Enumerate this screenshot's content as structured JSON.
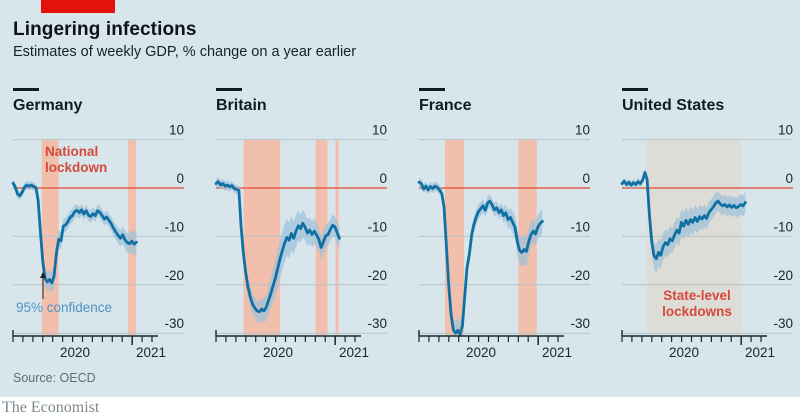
{
  "header": {
    "title": "Lingering infections",
    "subtitle": "Estimates of weekly GDP, % change on a year earlier"
  },
  "footer": {
    "source": "Source: OECD",
    "brand": "The Economist"
  },
  "colors": {
    "card_bg": "#d8e6ec",
    "red_tab": "#e3120b",
    "band_pink": "#f2bfac",
    "band_gray": "#dedcd6",
    "gridline": "#b4c3ca",
    "zero_line": "#e4604e",
    "gdp_line": "#1170a3",
    "confidence_band": "#9dc2d9",
    "annotation_red": "#d6493a",
    "annotation_blue": "#4e93c4",
    "axis": "#13282e"
  },
  "chart_data": {
    "type": "line",
    "title": "Lingering infections",
    "ylabel": "% change on a year earlier",
    "ylim": [
      -33,
      10
    ],
    "yticks": [
      10,
      0,
      -10,
      -20,
      -30
    ],
    "x_unit": "weeks since 2020-01-01",
    "x_axis": {
      "start": "2020-01",
      "end": "2021-03",
      "year_labels": [
        "2020",
        "2021"
      ],
      "tick_interval": "monthly"
    },
    "legend": {
      "confidence_label": "95% confidence"
    },
    "panels": [
      {
        "id": "germany",
        "title": "Germany",
        "lockdowns": [
          {
            "from": 12.6,
            "to": 19.9,
            "style": "pink"
          },
          {
            "from": 50.4,
            "to": 53.8,
            "style": "pink"
          }
        ],
        "gdp": [
          1.0,
          0.2,
          -1.3,
          -1.6,
          -0.9,
          0.1,
          0.6,
          0.4,
          0.6,
          0.3,
          0.1,
          -2.5,
          -9.0,
          -15.0,
          -18.6,
          -19.4,
          -18.9,
          -19.6,
          -18.2,
          -13.5,
          -10.6,
          -10.9,
          -7.9,
          -7.6,
          -7.0,
          -6.1,
          -5.7,
          -4.9,
          -4.6,
          -5.1,
          -4.5,
          -5.4,
          -4.7,
          -5.6,
          -5.9,
          -5.3,
          -5.7,
          -4.7,
          -5.0,
          -5.7,
          -6.4,
          -6.0,
          -6.7,
          -7.4,
          -8.3,
          -9.1,
          -9.8,
          -10.4,
          -9.7,
          -10.7,
          -11.3,
          -11.5,
          -11.0,
          -11.6,
          -11.2
        ],
        "band": [
          [
            0,
            0.9
          ],
          [
            10,
            0.8
          ],
          [
            14,
            1.8
          ],
          [
            18,
            2.2
          ],
          [
            22,
            1.5
          ],
          [
            30,
            1.2
          ],
          [
            40,
            1.3
          ],
          [
            46,
            1.6
          ],
          [
            50,
            2.0
          ],
          [
            54,
            2.6
          ]
        ],
        "annotations": [
          {
            "id": "national-lockdown",
            "text": "National\nlockdown",
            "color": "red",
            "x": 45,
            "y": 144
          },
          {
            "id": "confidence-label",
            "text": "95% confidence",
            "color": "blue",
            "x": 16,
            "y": 300
          }
        ],
        "arrow": {
          "x": 43,
          "y1": 299,
          "y2": 272
        }
      },
      {
        "id": "britain",
        "title": "Britain",
        "lockdowns": [
          {
            "from": 12.1,
            "to": 28.1,
            "style": "pink"
          },
          {
            "from": 43.6,
            "to": 48.8,
            "style": "pink"
          },
          {
            "from": 52.3,
            "to": 53.6,
            "style": "pink"
          }
        ],
        "gdp": [
          0.9,
          1.3,
          0.6,
          0.9,
          0.4,
          0.6,
          0.3,
          0.5,
          -0.1,
          -0.3,
          -0.5,
          -8.0,
          -13.5,
          -17.5,
          -20.5,
          -22.5,
          -24.0,
          -24.8,
          -25.4,
          -25.6,
          -25.0,
          -25.4,
          -24.6,
          -23.2,
          -21.8,
          -20.2,
          -18.6,
          -16.6,
          -14.6,
          -13.0,
          -11.4,
          -10.2,
          -10.8,
          -9.4,
          -10.4,
          -8.9,
          -7.8,
          -8.4,
          -7.3,
          -8.1,
          -9.3,
          -8.7,
          -9.6,
          -8.9,
          -9.7,
          -10.6,
          -12.3,
          -11.1,
          -9.9,
          -9.6,
          -8.6,
          -7.7,
          -8.0,
          -9.2,
          -10.4
        ],
        "band": [
          [
            0,
            1.0
          ],
          [
            10,
            0.9
          ],
          [
            14,
            2.0
          ],
          [
            18,
            2.2
          ],
          [
            22,
            2.6
          ],
          [
            26,
            3.8
          ],
          [
            30,
            4.0
          ],
          [
            34,
            3.4
          ],
          [
            38,
            2.8
          ],
          [
            44,
            2.6
          ],
          [
            48,
            2.4
          ],
          [
            52,
            2.2
          ],
          [
            54,
            2.4
          ]
        ],
        "annotations": []
      },
      {
        "id": "france",
        "title": "France",
        "lockdowns": [
          {
            "from": 11.4,
            "to": 19.7,
            "style": "pink"
          },
          {
            "from": 43.5,
            "to": 51.5,
            "style": "pink"
          }
        ],
        "gdp": [
          1.2,
          0.9,
          -0.2,
          0.4,
          -0.4,
          0.3,
          -0.1,
          0.4,
          0.1,
          -0.4,
          -1.2,
          -4.0,
          -12.0,
          -20.0,
          -26.0,
          -29.3,
          -30.0,
          -29.4,
          -30.5,
          -28.5,
          -22.5,
          -16.5,
          -13.8,
          -9.8,
          -7.6,
          -6.1,
          -4.9,
          -4.3,
          -3.7,
          -4.6,
          -3.1,
          -2.7,
          -3.5,
          -4.5,
          -4.1,
          -5.1,
          -4.5,
          -5.7,
          -5.1,
          -6.5,
          -6.1,
          -7.1,
          -8.1,
          -11.0,
          -12.9,
          -13.3,
          -12.7,
          -13.1,
          -11.1,
          -9.6,
          -8.9,
          -9.5,
          -8.1,
          -7.3,
          -6.9
        ],
        "band": [
          [
            0,
            0.9
          ],
          [
            10,
            1.0
          ],
          [
            14,
            2.2
          ],
          [
            18,
            2.6
          ],
          [
            22,
            1.8
          ],
          [
            28,
            1.4
          ],
          [
            36,
            1.4
          ],
          [
            42,
            2.4
          ],
          [
            46,
            3.2
          ],
          [
            50,
            2.4
          ],
          [
            54,
            2.6
          ]
        ],
        "annotations": []
      },
      {
        "id": "united-states",
        "title": "United States",
        "lockdowns": [
          {
            "from": 11.0,
            "to": 52.0,
            "style": "gray"
          }
        ],
        "gdp": [
          0.9,
          1.4,
          0.7,
          1.2,
          0.6,
          1.1,
          0.7,
          1.3,
          0.9,
          1.6,
          3.2,
          1.8,
          -5.5,
          -11.0,
          -14.0,
          -14.6,
          -13.3,
          -13.9,
          -12.1,
          -11.3,
          -11.7,
          -10.5,
          -10.9,
          -9.7,
          -8.7,
          -9.3,
          -7.1,
          -7.9,
          -6.7,
          -7.5,
          -6.5,
          -7.1,
          -6.1,
          -6.9,
          -5.9,
          -6.4,
          -5.7,
          -6.3,
          -5.1,
          -4.5,
          -3.9,
          -3.1,
          -2.7,
          -3.3,
          -3.7,
          -3.4,
          -3.9,
          -3.5,
          -4.0,
          -3.6,
          -4.1,
          -3.8,
          -3.4,
          -3.7,
          -3.0
        ],
        "band": [
          [
            0,
            0.7
          ],
          [
            10,
            0.8
          ],
          [
            13,
            2.4
          ],
          [
            16,
            3.0
          ],
          [
            20,
            2.6
          ],
          [
            26,
            2.8
          ],
          [
            32,
            2.6
          ],
          [
            38,
            2.2
          ],
          [
            44,
            2.0
          ],
          [
            50,
            2.0
          ],
          [
            54,
            2.2
          ]
        ],
        "annotations": [
          {
            "id": "state-lockdowns",
            "text": "State-level\nlockdowns",
            "color": "red",
            "x": 49,
            "y": 288,
            "width": 78,
            "align": "center"
          }
        ]
      }
    ]
  }
}
